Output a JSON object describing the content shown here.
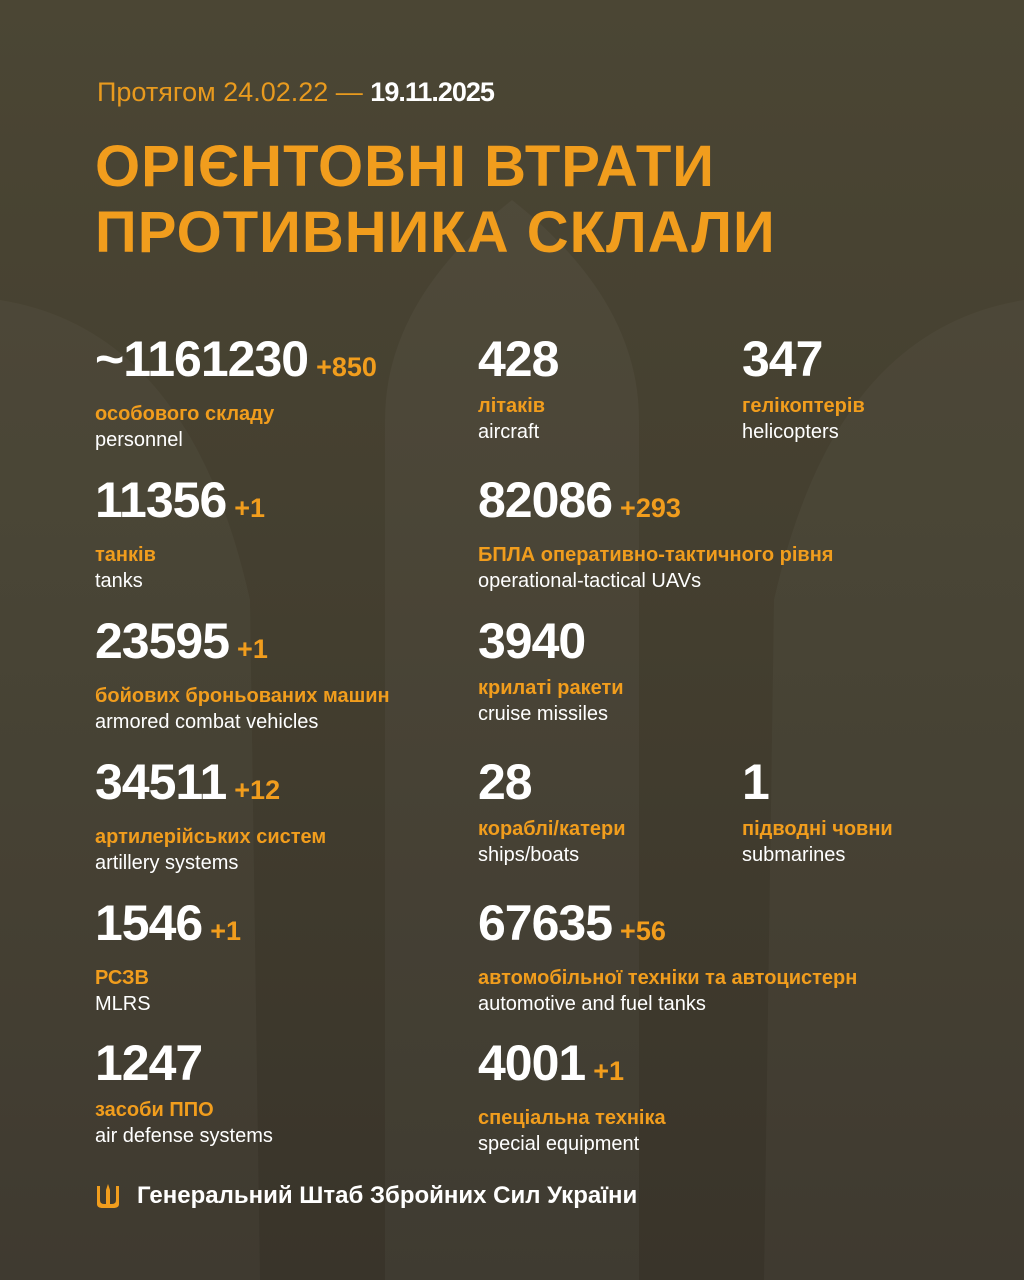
{
  "header": {
    "period_prefix": "Протягом 24.02.22 —",
    "period_end": "19.11.2025",
    "title_line1": "ОРІЄНТОВНІ ВТРАТИ",
    "title_line2": "ПРОТИВНИКА СКЛАЛИ"
  },
  "stats": [
    {
      "value": "~1161230",
      "delta": "+850",
      "ua": "особового складу",
      "en": "personnel"
    },
    {
      "value": "428",
      "delta": "",
      "ua": "літаків",
      "en": "aircraft"
    },
    {
      "value": "347",
      "delta": "",
      "ua": "гелікоптерів",
      "en": "helicopters"
    },
    {
      "value": "11356",
      "delta": "+1",
      "ua": "танків",
      "en": "tanks"
    },
    {
      "value": "82086",
      "delta": "+293",
      "ua": "БПЛА оперативно-тактичного рівня",
      "en": "operational-tactical UAVs"
    },
    {
      "value": "23595",
      "delta": "+1",
      "ua": "бойових броньованих машин",
      "en": "armored combat vehicles"
    },
    {
      "value": "3940",
      "delta": "",
      "ua": "крилаті ракети",
      "en": "cruise missiles"
    },
    {
      "value": "34511",
      "delta": "+12",
      "ua": "артилерійських систем",
      "en": "artillery systems"
    },
    {
      "value": "28",
      "delta": "",
      "ua": "кораблі/катери",
      "en": "ships/boats"
    },
    {
      "value": "1",
      "delta": "",
      "ua": "підводні човни",
      "en": "submarines"
    },
    {
      "value": "1546",
      "delta": "+1",
      "ua": "РСЗВ",
      "en": "MLRS"
    },
    {
      "value": "67635",
      "delta": "+56",
      "ua": "автомобільної техніки та автоцистерн",
      "en": "automotive and fuel tanks"
    },
    {
      "value": "1247",
      "delta": "",
      "ua": "засоби ППО",
      "en": "air defense systems"
    },
    {
      "value": "4001",
      "delta": "+1",
      "ua": "спеціальна техніка",
      "en": "special equipment"
    }
  ],
  "footer": {
    "text": "Генеральний Штаб Збройних Сил України",
    "icon": "trident-icon"
  },
  "colors": {
    "accent": "#f19d1d",
    "background": "#46412f",
    "text": "#ffffff"
  }
}
